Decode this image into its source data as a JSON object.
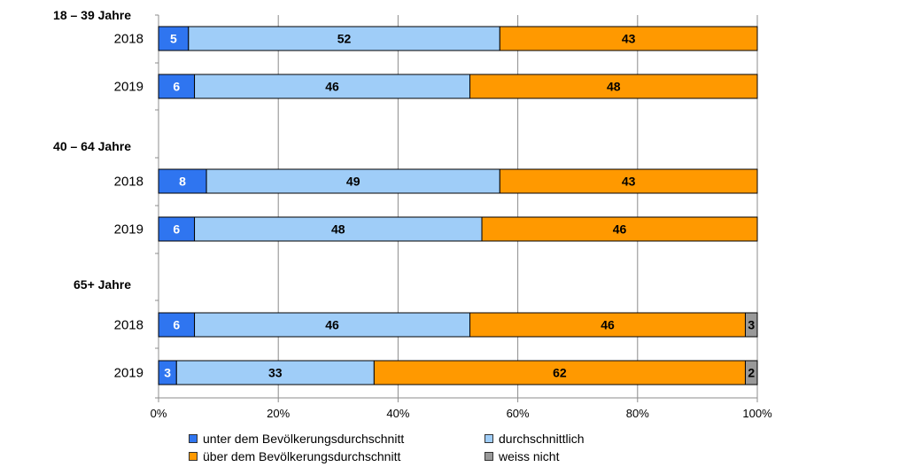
{
  "chart_data": {
    "type": "bar",
    "orientation": "horizontal",
    "stacked": true,
    "groups": [
      {
        "label": "18 – 39 Jahre",
        "bars": [
          {
            "year": "2018",
            "values": [
              5,
              52,
              43,
              0.5
            ]
          },
          {
            "year": "2019",
            "values": [
              6,
              46,
              48,
              0
            ]
          }
        ]
      },
      {
        "label": "40 – 64 Jahre",
        "bars": [
          {
            "year": "2018",
            "values": [
              8,
              49,
              43,
              0.5
            ]
          },
          {
            "year": "2019",
            "values": [
              6,
              48,
              46,
              0.5
            ]
          }
        ]
      },
      {
        "label": "65+ Jahre",
        "bars": [
          {
            "year": "2018",
            "values": [
              6,
              46,
              46,
              3
            ]
          },
          {
            "year": "2019",
            "values": [
              3,
              33,
              62,
              2
            ]
          }
        ]
      }
    ],
    "value_labels": [
      [
        "5",
        "52",
        "43",
        ""
      ],
      [
        "6",
        "46",
        "48",
        ""
      ],
      [
        "8",
        "49",
        "43",
        ""
      ],
      [
        "6",
        "48",
        "46",
        ""
      ],
      [
        "6",
        "46",
        "46",
        "3"
      ],
      [
        "3",
        "33",
        "62",
        "2"
      ]
    ],
    "series": [
      {
        "name": "unter dem Bevölkerungsdurchschnitt",
        "color": "#2f75f0",
        "label_color": "#ffffff"
      },
      {
        "name": "durchschnittlich",
        "color": "#9fcdf8",
        "label_color": "#000000"
      },
      {
        "name": "über dem Bevölkerungsdurchschnitt",
        "color": "#ff9900",
        "label_color": "#000000"
      },
      {
        "name": "weiss nicht",
        "color": "#999999",
        "label_color": "#000000"
      }
    ],
    "x_ticks": [
      "0%",
      "20%",
      "40%",
      "60%",
      "80%",
      "100%"
    ],
    "xlim": [
      0,
      100
    ],
    "grid": true,
    "legend_position": "bottom"
  }
}
